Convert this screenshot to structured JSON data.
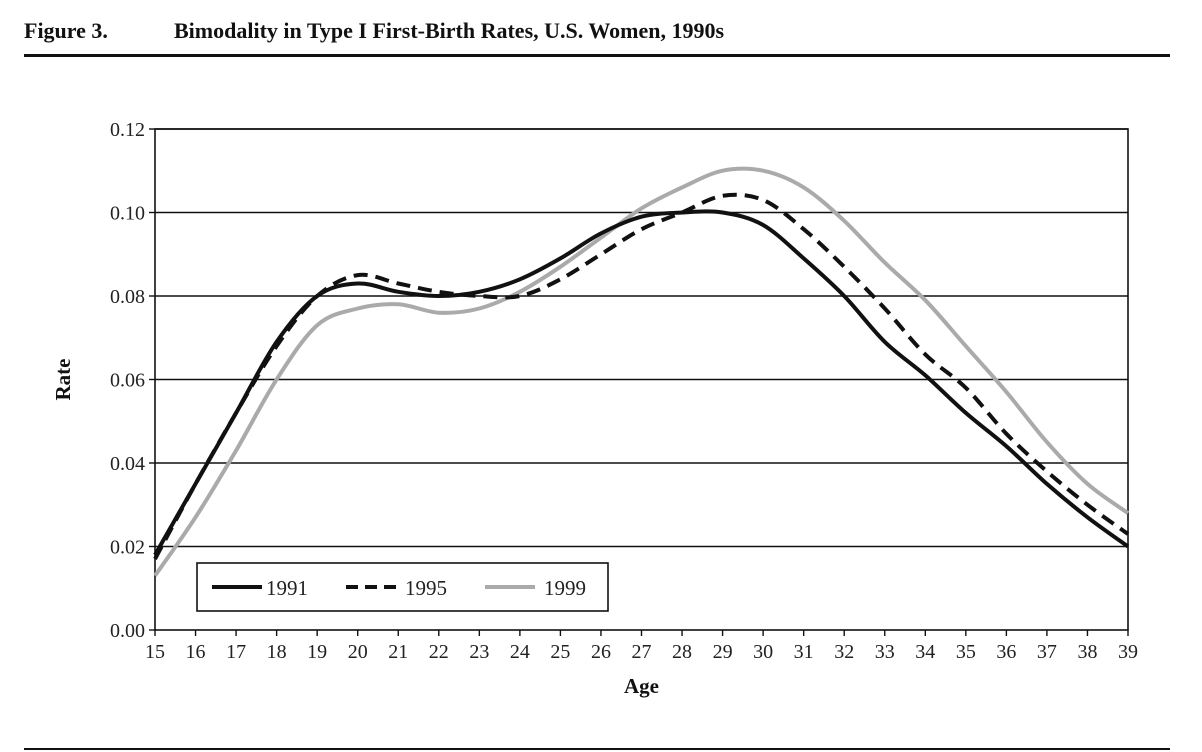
{
  "figure": {
    "label": "Figure 3.",
    "title": "Bimodality in Type I First-Birth Rates, U.S. Women, 1990s"
  },
  "chart_data": {
    "type": "line",
    "xlabel": "Age",
    "ylabel": "Rate",
    "xlim": [
      15,
      39
    ],
    "ylim": [
      0,
      0.12
    ],
    "x_ticks": [
      "15",
      "16",
      "17",
      "18",
      "19",
      "20",
      "21",
      "22",
      "23",
      "24",
      "25",
      "26",
      "27",
      "28",
      "29",
      "30",
      "31",
      "32",
      "33",
      "34",
      "35",
      "36",
      "37",
      "38",
      "39"
    ],
    "y_ticks": [
      "0.00",
      "0.02",
      "0.04",
      "0.06",
      "0.08",
      "0.10",
      "0.12"
    ],
    "y_tick_values": [
      0,
      0.02,
      0.04,
      0.06,
      0.08,
      0.1,
      0.12
    ],
    "grid": "horizontal",
    "legend_position": "bottom-left",
    "x": [
      15,
      16,
      17,
      18,
      19,
      20,
      21,
      22,
      23,
      24,
      25,
      26,
      27,
      28,
      29,
      30,
      31,
      32,
      33,
      34,
      35,
      36,
      37,
      38,
      39
    ],
    "series": [
      {
        "name": "1991",
        "style": "solid",
        "color": "#111111",
        "values": [
          0.018,
          0.035,
          0.052,
          0.069,
          0.08,
          0.083,
          0.081,
          0.08,
          0.081,
          0.084,
          0.089,
          0.095,
          0.099,
          0.1,
          0.1,
          0.097,
          0.089,
          0.08,
          0.069,
          0.061,
          0.052,
          0.044,
          0.035,
          0.027,
          0.02
        ]
      },
      {
        "name": "1995",
        "style": "dashed",
        "color": "#111111",
        "values": [
          0.017,
          0.035,
          0.052,
          0.068,
          0.08,
          0.085,
          0.083,
          0.081,
          0.08,
          0.08,
          0.084,
          0.09,
          0.096,
          0.1,
          0.104,
          0.103,
          0.096,
          0.087,
          0.077,
          0.066,
          0.058,
          0.047,
          0.038,
          0.03,
          0.023
        ]
      },
      {
        "name": "1999",
        "style": "solid",
        "color": "#a8aaac",
        "values": [
          0.013,
          0.027,
          0.043,
          0.06,
          0.073,
          0.077,
          0.078,
          0.076,
          0.077,
          0.081,
          0.087,
          0.094,
          0.101,
          0.106,
          0.11,
          0.11,
          0.106,
          0.098,
          0.088,
          0.079,
          0.068,
          0.057,
          0.045,
          0.035,
          0.028
        ]
      }
    ]
  }
}
